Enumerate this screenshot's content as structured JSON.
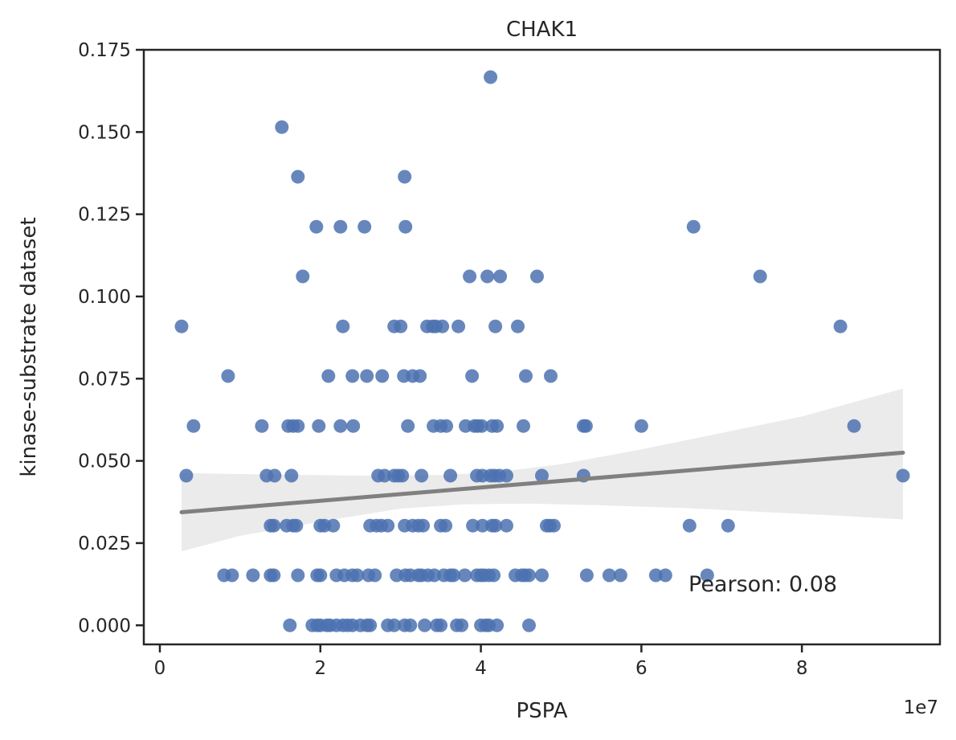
{
  "chart_data": {
    "type": "scatter",
    "title": "CHAK1",
    "xlabel": "PSPA",
    "ylabel": "kinase-substrate dataset",
    "x_offset_label": "1e7",
    "annotation": "Pearson: 0.08",
    "xlim": [
      -0.2,
      9.72
    ],
    "ylim": [
      -0.0058,
      0.175
    ],
    "x_ticks": [
      0,
      2,
      4,
      6,
      8
    ],
    "x_tick_labels": [
      "0",
      "2",
      "4",
      "6",
      "8"
    ],
    "y_ticks": [
      0.0,
      0.025,
      0.05,
      0.075,
      0.1,
      0.125,
      0.15,
      0.175
    ],
    "y_tick_labels": [
      "0.000",
      "0.025",
      "0.050",
      "0.075",
      "0.100",
      "0.125",
      "0.150",
      "0.175"
    ],
    "colors": {
      "points": "#4c72b0",
      "regression_line": "#808080",
      "confidence_band": "#ebebeb",
      "axes": "#262626"
    },
    "regression": {
      "x": [
        0.27,
        9.26
      ],
      "y": [
        0.0344,
        0.0525
      ],
      "ci_upper": [
        [
          0.27,
          0.0463
        ],
        [
          1.5,
          0.0458
        ],
        [
          2.5,
          0.0455
        ],
        [
          3.5,
          0.0457
        ],
        [
          4.2,
          0.0466
        ],
        [
          5,
          0.049
        ],
        [
          6,
          0.0535
        ],
        [
          7,
          0.0585
        ],
        [
          8,
          0.0635
        ],
        [
          9.26,
          0.072
        ]
      ],
      "ci_lower": [
        [
          0.27,
          0.0225
        ],
        [
          1.0,
          0.0272
        ],
        [
          2.0,
          0.0315
        ],
        [
          3.0,
          0.0355
        ],
        [
          3.8,
          0.0368
        ],
        [
          4.6,
          0.037
        ],
        [
          5.5,
          0.0365
        ],
        [
          6.5,
          0.0357
        ],
        [
          7.5,
          0.0345
        ],
        [
          8.5,
          0.0333
        ],
        [
          9.26,
          0.0322
        ]
      ]
    },
    "points": [
      [
        4.12,
        0.1667
      ],
      [
        1.52,
        0.1515
      ],
      [
        1.72,
        0.1364
      ],
      [
        3.05,
        0.1364
      ],
      [
        1.95,
        0.1212
      ],
      [
        2.25,
        0.1212
      ],
      [
        2.55,
        0.1212
      ],
      [
        3.06,
        0.1212
      ],
      [
        6.65,
        0.1212
      ],
      [
        1.78,
        0.1061
      ],
      [
        3.86,
        0.1061
      ],
      [
        4.08,
        0.1061
      ],
      [
        4.24,
        0.1061
      ],
      [
        4.7,
        0.1061
      ],
      [
        7.48,
        0.1061
      ],
      [
        0.27,
        0.0909
      ],
      [
        2.28,
        0.0909
      ],
      [
        2.92,
        0.0909
      ],
      [
        3.0,
        0.0909
      ],
      [
        3.33,
        0.0909
      ],
      [
        3.4,
        0.0909
      ],
      [
        3.44,
        0.0909
      ],
      [
        3.52,
        0.0909
      ],
      [
        3.72,
        0.0909
      ],
      [
        4.18,
        0.0909
      ],
      [
        4.46,
        0.0909
      ],
      [
        8.48,
        0.0909
      ],
      [
        0.85,
        0.0758
      ],
      [
        2.1,
        0.0758
      ],
      [
        2.4,
        0.0758
      ],
      [
        2.58,
        0.0758
      ],
      [
        2.77,
        0.0758
      ],
      [
        3.04,
        0.0758
      ],
      [
        3.15,
        0.0758
      ],
      [
        3.24,
        0.0758
      ],
      [
        3.89,
        0.0758
      ],
      [
        4.56,
        0.0758
      ],
      [
        4.87,
        0.0758
      ],
      [
        0.42,
        0.0606
      ],
      [
        1.27,
        0.0606
      ],
      [
        1.6,
        0.0606
      ],
      [
        1.66,
        0.0606
      ],
      [
        1.72,
        0.0606
      ],
      [
        1.98,
        0.0606
      ],
      [
        2.25,
        0.0606
      ],
      [
        2.41,
        0.0606
      ],
      [
        3.09,
        0.0606
      ],
      [
        3.41,
        0.0606
      ],
      [
        3.5,
        0.0606
      ],
      [
        3.57,
        0.0606
      ],
      [
        3.81,
        0.0606
      ],
      [
        3.92,
        0.0606
      ],
      [
        3.96,
        0.0606
      ],
      [
        4.01,
        0.0606
      ],
      [
        4.14,
        0.0606
      ],
      [
        4.2,
        0.0606
      ],
      [
        4.53,
        0.0606
      ],
      [
        5.28,
        0.0606
      ],
      [
        5.31,
        0.0606
      ],
      [
        6.0,
        0.0606
      ],
      [
        8.65,
        0.0606
      ],
      [
        0.33,
        0.0455
      ],
      [
        1.33,
        0.0455
      ],
      [
        1.43,
        0.0455
      ],
      [
        1.64,
        0.0455
      ],
      [
        2.72,
        0.0455
      ],
      [
        2.8,
        0.0455
      ],
      [
        2.92,
        0.0455
      ],
      [
        2.97,
        0.0455
      ],
      [
        3.02,
        0.0455
      ],
      [
        3.26,
        0.0455
      ],
      [
        3.62,
        0.0455
      ],
      [
        3.95,
        0.0455
      ],
      [
        4.02,
        0.0455
      ],
      [
        4.12,
        0.0455
      ],
      [
        4.17,
        0.0455
      ],
      [
        4.23,
        0.0455
      ],
      [
        4.32,
        0.0455
      ],
      [
        4.76,
        0.0455
      ],
      [
        5.28,
        0.0455
      ],
      [
        9.26,
        0.0455
      ],
      [
        1.38,
        0.0303
      ],
      [
        1.42,
        0.0303
      ],
      [
        1.58,
        0.0303
      ],
      [
        1.66,
        0.0303
      ],
      [
        1.7,
        0.0303
      ],
      [
        2.0,
        0.0303
      ],
      [
        2.05,
        0.0303
      ],
      [
        2.16,
        0.0303
      ],
      [
        2.62,
        0.0303
      ],
      [
        2.7,
        0.0303
      ],
      [
        2.76,
        0.0303
      ],
      [
        2.84,
        0.0303
      ],
      [
        3.05,
        0.0303
      ],
      [
        3.15,
        0.0303
      ],
      [
        3.22,
        0.0303
      ],
      [
        3.28,
        0.0303
      ],
      [
        3.5,
        0.0303
      ],
      [
        3.56,
        0.0303
      ],
      [
        3.9,
        0.0303
      ],
      [
        4.02,
        0.0303
      ],
      [
        4.14,
        0.0303
      ],
      [
        4.18,
        0.0303
      ],
      [
        4.32,
        0.0303
      ],
      [
        4.82,
        0.0303
      ],
      [
        4.86,
        0.0303
      ],
      [
        4.91,
        0.0303
      ],
      [
        6.6,
        0.0303
      ],
      [
        7.08,
        0.0303
      ],
      [
        0.8,
        0.0152
      ],
      [
        0.9,
        0.0152
      ],
      [
        1.16,
        0.0152
      ],
      [
        1.38,
        0.0152
      ],
      [
        1.42,
        0.0152
      ],
      [
        1.72,
        0.0152
      ],
      [
        1.96,
        0.0152
      ],
      [
        2.0,
        0.0152
      ],
      [
        2.2,
        0.0152
      ],
      [
        2.3,
        0.0152
      ],
      [
        2.4,
        0.0152
      ],
      [
        2.46,
        0.0152
      ],
      [
        2.6,
        0.0152
      ],
      [
        2.68,
        0.0152
      ],
      [
        2.95,
        0.0152
      ],
      [
        3.06,
        0.0152
      ],
      [
        3.12,
        0.0152
      ],
      [
        3.22,
        0.0152
      ],
      [
        3.26,
        0.0152
      ],
      [
        3.34,
        0.0152
      ],
      [
        3.42,
        0.0152
      ],
      [
        3.54,
        0.0152
      ],
      [
        3.62,
        0.0152
      ],
      [
        3.66,
        0.0152
      ],
      [
        3.8,
        0.0152
      ],
      [
        3.95,
        0.0152
      ],
      [
        4.0,
        0.0152
      ],
      [
        4.04,
        0.0152
      ],
      [
        4.1,
        0.0152
      ],
      [
        4.16,
        0.0152
      ],
      [
        4.43,
        0.0152
      ],
      [
        4.51,
        0.0152
      ],
      [
        4.55,
        0.0152
      ],
      [
        4.6,
        0.0152
      ],
      [
        4.76,
        0.0152
      ],
      [
        5.32,
        0.0152
      ],
      [
        5.6,
        0.0152
      ],
      [
        5.74,
        0.0152
      ],
      [
        6.18,
        0.0152
      ],
      [
        6.3,
        0.0152
      ],
      [
        6.82,
        0.0152
      ],
      [
        1.62,
        0.0
      ],
      [
        1.9,
        0.0
      ],
      [
        1.96,
        0.0
      ],
      [
        2.0,
        0.0
      ],
      [
        2.08,
        0.0
      ],
      [
        2.12,
        0.0
      ],
      [
        2.2,
        0.0
      ],
      [
        2.28,
        0.0
      ],
      [
        2.34,
        0.0
      ],
      [
        2.4,
        0.0
      ],
      [
        2.5,
        0.0
      ],
      [
        2.58,
        0.0
      ],
      [
        2.62,
        0.0
      ],
      [
        2.84,
        0.0
      ],
      [
        2.92,
        0.0
      ],
      [
        3.05,
        0.0
      ],
      [
        3.12,
        0.0
      ],
      [
        3.3,
        0.0
      ],
      [
        3.45,
        0.0
      ],
      [
        3.5,
        0.0
      ],
      [
        3.7,
        0.0
      ],
      [
        3.76,
        0.0
      ],
      [
        4.0,
        0.0
      ],
      [
        4.06,
        0.0
      ],
      [
        4.1,
        0.0
      ],
      [
        4.2,
        0.0
      ],
      [
        4.6,
        0.0
      ]
    ]
  }
}
